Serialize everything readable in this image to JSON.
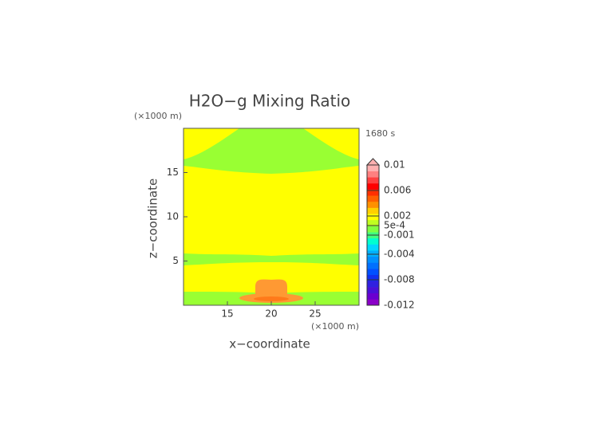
{
  "chart_data": {
    "type": "contour",
    "title": "H2O−g Mixing Ratio",
    "x_label": "x−coordinate",
    "y_label": "z−coordinate",
    "x_unit": "(×1000 m)",
    "y_unit": "(×1000 m)",
    "time_label": "1680 s",
    "xlim": [
      10,
      30
    ],
    "ylim": [
      0,
      20
    ],
    "xticks": [
      15,
      20,
      25
    ],
    "yticks": [
      5,
      10,
      15
    ],
    "colorbar": {
      "lim": [
        -0.012,
        0.01
      ],
      "ticks": [
        0.01,
        0.006,
        0.002,
        {
          "value": 0.0005,
          "label": "5e-4"
        },
        -0.001,
        -0.004,
        -0.008,
        -0.012
      ],
      "colors": [
        "#8a00c8",
        "#6a00d0",
        "#4a10d8",
        "#3020e0",
        "#1030f0",
        "#0050ff",
        "#0070ff",
        "#0090ff",
        "#00b0ff",
        "#00d8ff",
        "#00ffd0",
        "#40ff80",
        "#80ff40",
        "#c0ff20",
        "#ffff00",
        "#ffd000",
        "#ff9000",
        "#ff6000",
        "#ff3000",
        "#ff0000",
        "#ff4040",
        "#ff8080",
        "#ffb0b0"
      ]
    }
  }
}
